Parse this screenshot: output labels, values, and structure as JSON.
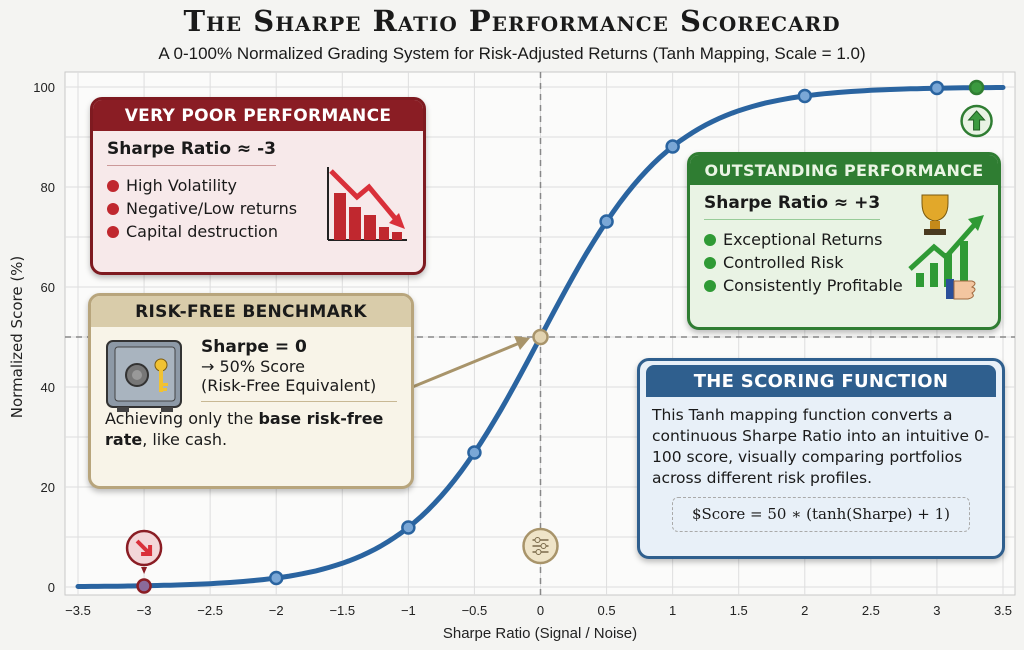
{
  "title": "The Sharpe Ratio Performance Scorecard",
  "subtitle": "A 0-100% Normalized Grading System for Risk-Adjusted Returns (Tanh Mapping, Scale = 1.0)",
  "colors": {
    "curve": "#2a64a0",
    "poor": "#8a1d24",
    "good": "#2f7d32",
    "riskfree": "#b8a57c",
    "function": "#2f5f8e"
  },
  "chart_data": {
    "type": "line",
    "title": "The Sharpe Ratio Performance Scorecard",
    "xlabel": "Sharpe Ratio (Signal / Noise)",
    "ylabel": "Normalized Score (%)",
    "xlim": [
      -3.5,
      3.5
    ],
    "ylim": [
      0,
      100
    ],
    "xticks": [
      "−3.5",
      "−3",
      "−2.5",
      "−2",
      "−1.5",
      "−1",
      "−0.5",
      "0",
      "0.5",
      "1",
      "1.5",
      "2",
      "2.5",
      "3",
      "3.5"
    ],
    "yticks": [
      "0",
      "20",
      "40",
      "60",
      "80",
      "100"
    ],
    "grid": true,
    "function": "50*(tanh(x)+1)",
    "markers": [
      {
        "x": -3,
        "y": 0.2
      },
      {
        "x": -2,
        "y": 1.8
      },
      {
        "x": -1,
        "y": 11.9
      },
      {
        "x": -0.5,
        "y": 26.9
      },
      {
        "x": 0,
        "y": 50
      },
      {
        "x": 0.5,
        "y": 73.1
      },
      {
        "x": 1,
        "y": 88.1
      },
      {
        "x": 2,
        "y": 98.2
      },
      {
        "x": 3,
        "y": 99.8
      }
    ],
    "highlights": [
      {
        "x": -3,
        "y": 0.2,
        "kind": "poor"
      },
      {
        "x": 3.3,
        "y": 99.9,
        "kind": "good"
      }
    ],
    "reference_lines": {
      "x": 0,
      "y": 50
    }
  },
  "poor": {
    "header": "VERY POOR PERFORMANCE",
    "heading": "Sharpe Ratio ≈ -3",
    "bullets": [
      "High Volatility",
      "Negative/Low returns",
      "Capital destruction"
    ]
  },
  "good": {
    "header": "OUTSTANDING PERFORMANCE",
    "heading": "Sharpe Ratio ≈ +3",
    "bullets": [
      "Exceptional Returns",
      "Controlled Risk",
      "Consistently Profitable"
    ]
  },
  "riskfree": {
    "header": "RISK-FREE BENCHMARK",
    "line1": "Sharpe = 0",
    "line2": "→ 50% Score",
    "line3": "(Risk-Free Equivalent)",
    "desc_pre": "Achieving only the ",
    "desc_bold": "base risk-free rate",
    "desc_post": ", like cash."
  },
  "function": {
    "header": "THE SCORING FUNCTION",
    "body": "This Tanh mapping function converts a continuous Sharpe Ratio into an intuitive 0-100 score, visually comparing portfolios across different risk profiles.",
    "formula": "$Score = 50 ∗ (tanh(Sharpe) + 1)"
  }
}
